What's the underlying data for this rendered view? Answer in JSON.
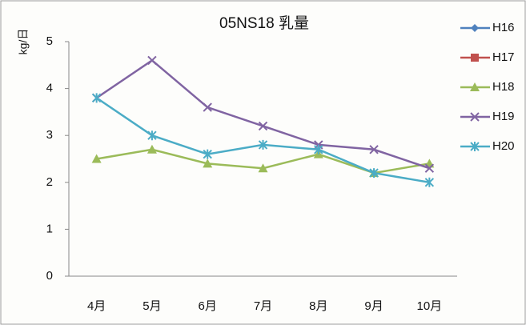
{
  "chart_data": {
    "type": "line",
    "title": "05NS18 乳量",
    "y_label": "kg/日",
    "categories": [
      "4月",
      "5月",
      "6月",
      "7月",
      "8月",
      "9月",
      "10月"
    ],
    "series": [
      {
        "name": "H16",
        "color": "#4f81bd",
        "marker": "diamond",
        "values": [
          null,
          null,
          null,
          null,
          null,
          null,
          null
        ]
      },
      {
        "name": "H17",
        "color": "#c0504d",
        "marker": "square",
        "values": [
          null,
          null,
          null,
          null,
          null,
          null,
          null
        ]
      },
      {
        "name": "H18",
        "color": "#9bbb59",
        "marker": "triangle",
        "values": [
          2.5,
          2.7,
          2.4,
          2.3,
          2.6,
          2.2,
          2.4
        ]
      },
      {
        "name": "H19",
        "color": "#8064a2",
        "marker": "x",
        "values": [
          3.8,
          4.6,
          3.6,
          3.2,
          2.8,
          2.7,
          2.3
        ]
      },
      {
        "name": "H20",
        "color": "#4bacc6",
        "marker": "star",
        "values": [
          3.8,
          3.0,
          2.6,
          2.8,
          2.7,
          2.2,
          2.0
        ]
      }
    ],
    "ylim": [
      0,
      5
    ],
    "yticks": [
      0,
      1,
      2,
      3,
      4,
      5
    ],
    "grid": false,
    "legend": "right"
  }
}
